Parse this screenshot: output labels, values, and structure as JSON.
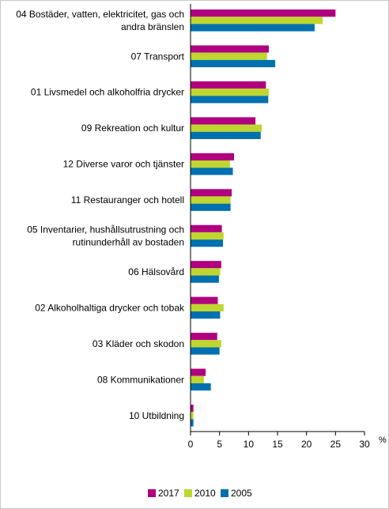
{
  "chart_data": {
    "type": "bar",
    "orientation": "horizontal",
    "categories": [
      [
        "04 Bostäder, vatten, elektricitet, gas och",
        "andra bränslen"
      ],
      [
        "07 Transport"
      ],
      [
        "01 Livsmedel och alkoholfria drycker"
      ],
      [
        "09 Rekreation och kultur"
      ],
      [
        "12 Diverse varor och tjänster"
      ],
      [
        "11 Restauranger och hotell"
      ],
      [
        "05 Inventarier, hushållsutrustning och",
        "rutinunderhåll av bostaden"
      ],
      [
        "06 Hälsovård"
      ],
      [
        "02 Alkoholhaltiga drycker och tobak"
      ],
      [
        "03 Kläder och skodon"
      ],
      [
        "08 Kommunikationer"
      ],
      [
        "10 Utbildning"
      ]
    ],
    "series": [
      {
        "name": "2017",
        "color": "#b0007f",
        "values": [
          25.0,
          13.5,
          13.0,
          11.2,
          7.5,
          7.1,
          5.4,
          5.3,
          4.7,
          4.6,
          2.6,
          0.5
        ]
      },
      {
        "name": "2010",
        "color": "#bfd62f",
        "values": [
          22.8,
          13.2,
          13.5,
          12.3,
          6.8,
          6.9,
          5.7,
          5.1,
          5.7,
          5.3,
          2.3,
          0.5
        ]
      },
      {
        "name": "2005",
        "color": "#0071ae",
        "values": [
          21.4,
          14.6,
          13.4,
          12.1,
          7.3,
          6.9,
          5.6,
          4.9,
          5.1,
          5.0,
          3.5,
          0.5
        ]
      }
    ],
    "xlim": [
      0,
      30
    ],
    "xticks": [
      "0",
      "5",
      "10",
      "15",
      "20",
      "25",
      "30"
    ],
    "xunit": "%",
    "grid": false,
    "legend_position": "bottom"
  }
}
